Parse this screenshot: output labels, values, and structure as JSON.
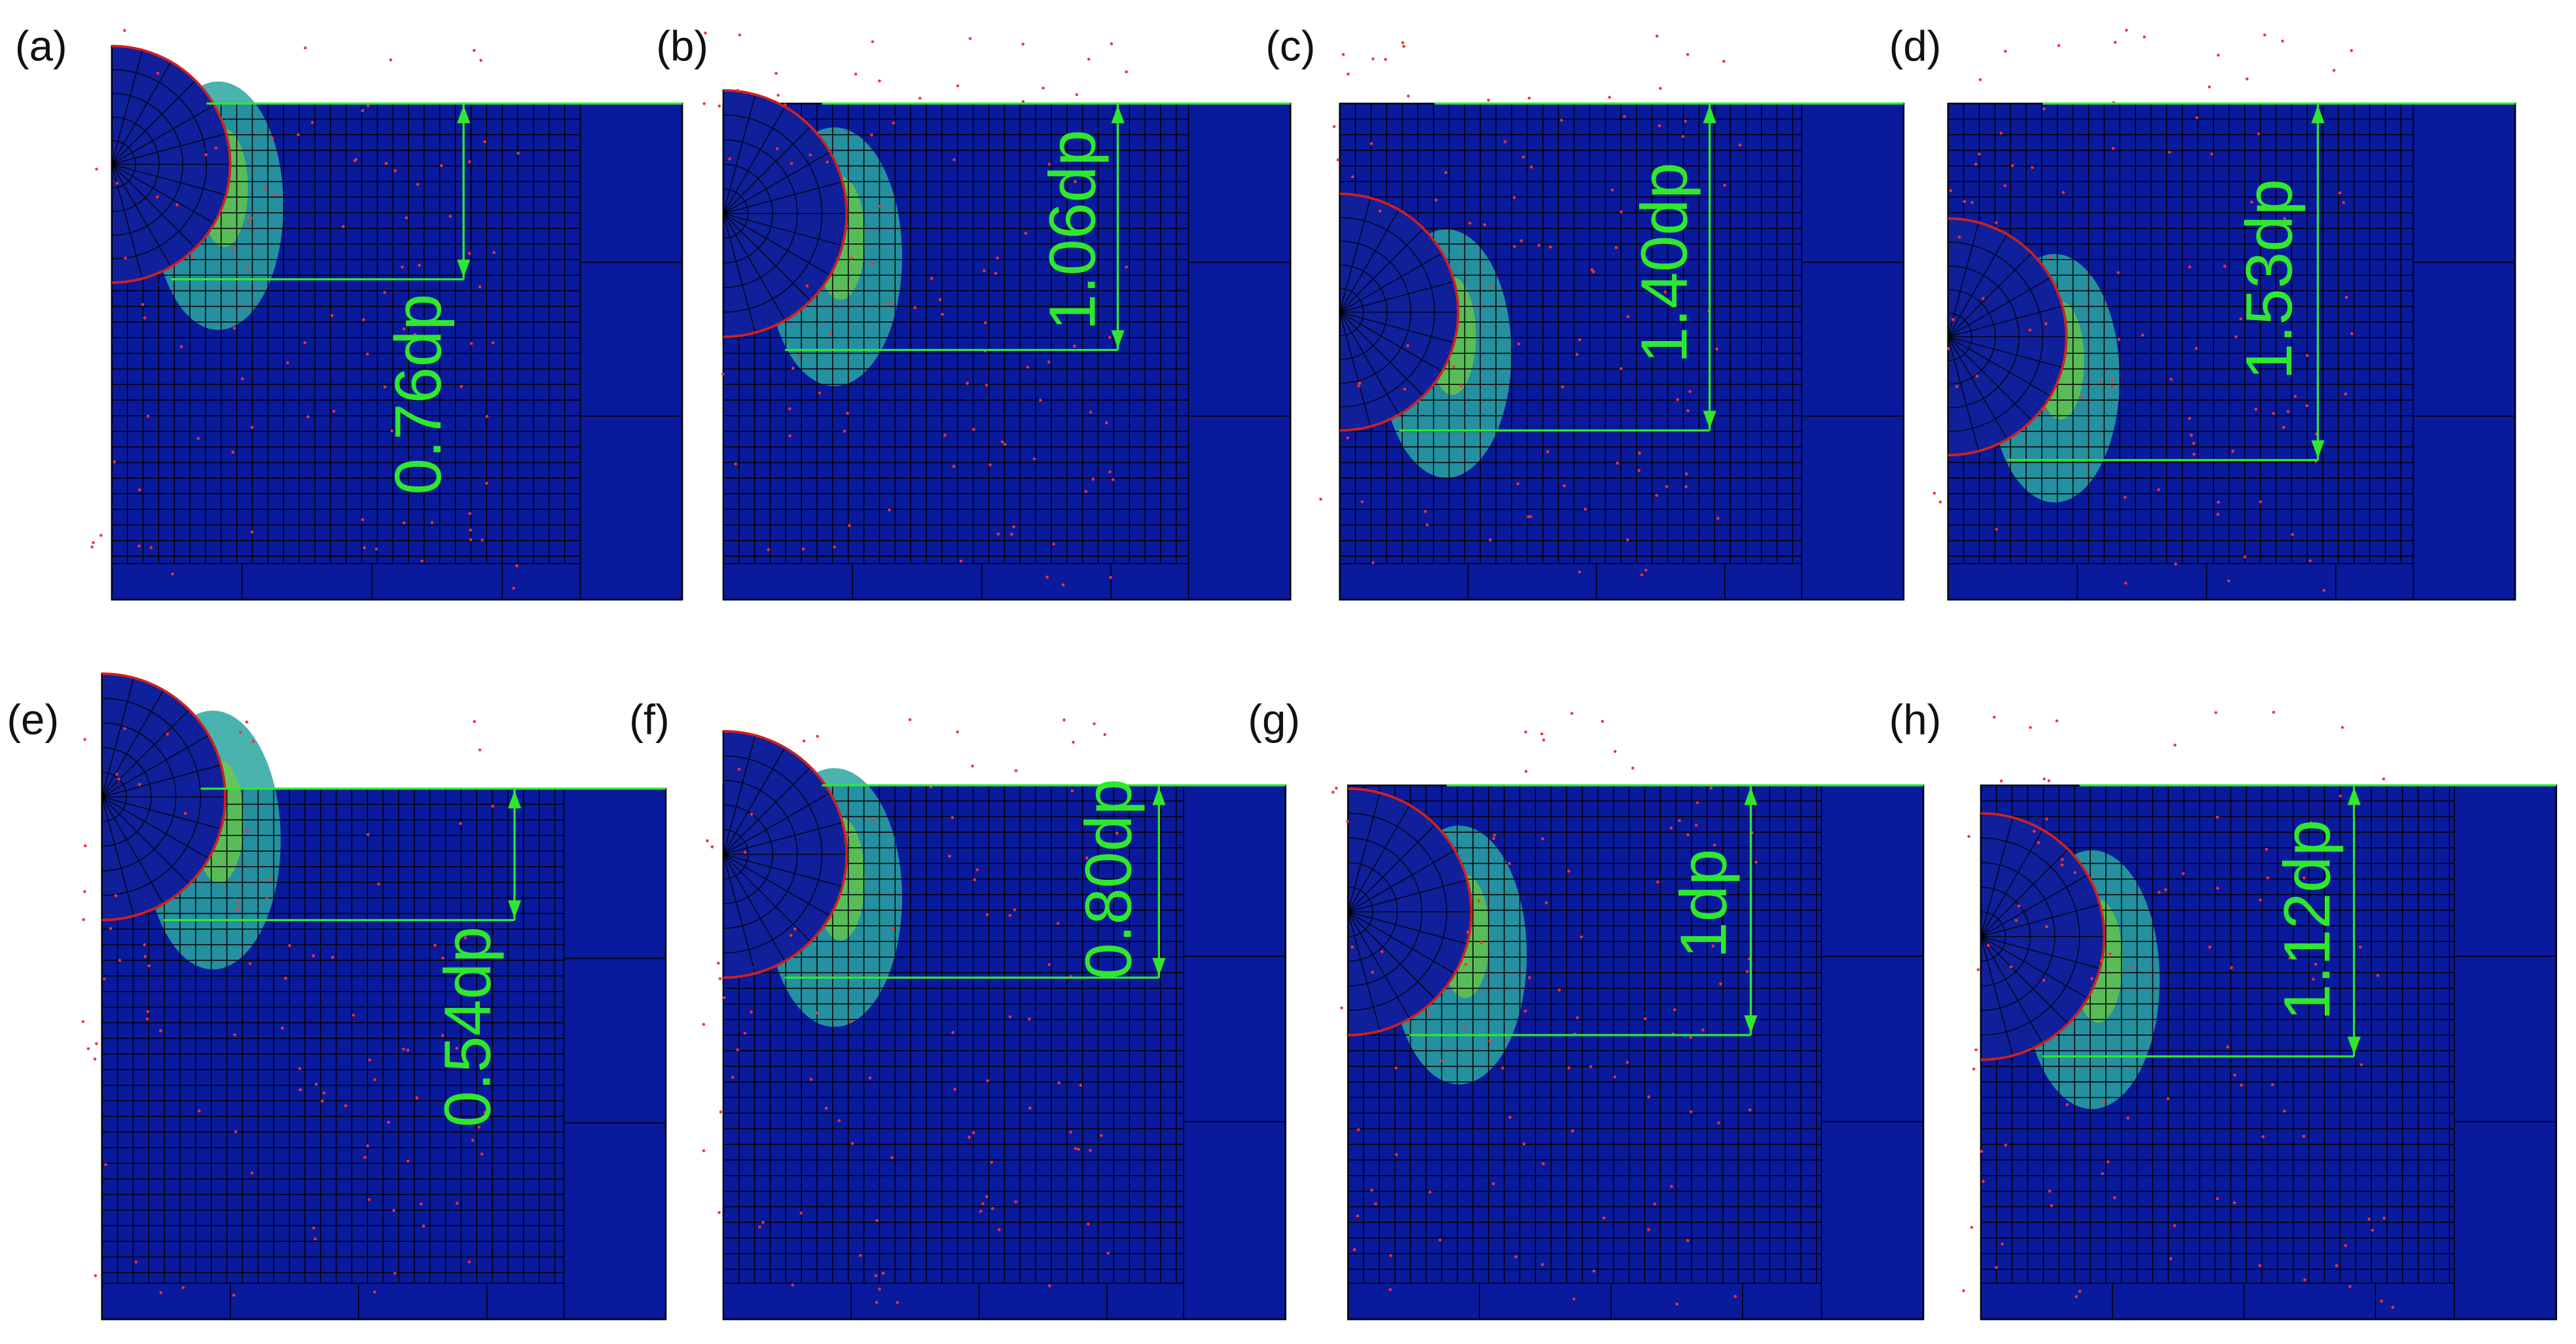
{
  "panels": [
    {
      "label": "(a)",
      "depth": "0.76dp"
    },
    {
      "label": "(b)",
      "depth": "1.06dp"
    },
    {
      "label": "(c)",
      "depth": "1.40dp"
    },
    {
      "label": "(d)",
      "depth": "1.53dp"
    },
    {
      "label": "(e)",
      "depth": "0.54dp"
    },
    {
      "label": "(f)",
      "depth": "0.80dp"
    },
    {
      "label": "(g)",
      "depth": "1dp"
    },
    {
      "label": "(h)",
      "depth": "1.12dp"
    }
  ]
}
